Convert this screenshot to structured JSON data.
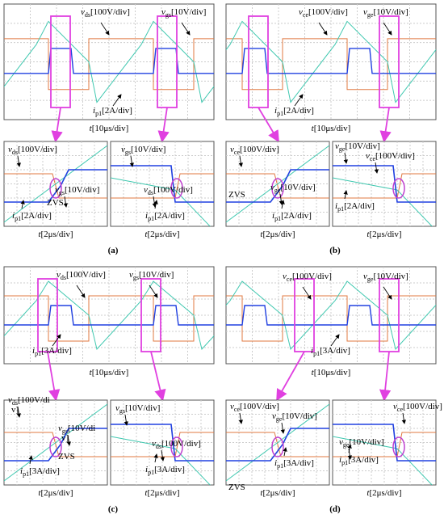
{
  "panels": [
    {
      "letter": "(a)",
      "main": {
        "labels": [
          {
            "v": "v",
            "sub": "ds",
            "text": "[100V/div]"
          },
          {
            "v": "v",
            "sub": "gs",
            "text": "[10V/div]"
          },
          {
            "v": "i",
            "sub": "p1",
            "text": "[2A/div]"
          }
        ],
        "time": {
          "v": "t",
          "text": "[10μs/div]"
        }
      },
      "zooms": [
        {
          "labels": [
            {
              "v": "v",
              "sub": "ds",
              "text": "[100V/div]"
            },
            {
              "v": "v",
              "sub": "gs",
              "text": "[10V/div]"
            },
            {
              "v": "i",
              "sub": "p1",
              "text": "[2A/div]"
            }
          ],
          "zvs": "ZVS",
          "time": {
            "v": "t",
            "text": "[2μs/div]"
          }
        },
        {
          "labels": [
            {
              "v": "v",
              "sub": "gs",
              "text": "[10V/div]"
            },
            {
              "v": "v",
              "sub": "ds",
              "text": "[100V/div]"
            },
            {
              "v": "i",
              "sub": "p1",
              "text": "[2A/div]"
            }
          ],
          "time": {
            "v": "t",
            "text": "[2μs/div]"
          }
        }
      ]
    },
    {
      "letter": "(b)",
      "main": {
        "labels": [
          {
            "v": "v",
            "sub": "ce",
            "text": "[100V/div]"
          },
          {
            "v": "v",
            "sub": "ge",
            "text": "[10V/div]"
          },
          {
            "v": "i",
            "sub": "p1",
            "text": "[2A/div]"
          }
        ],
        "time": {
          "v": "t",
          "text": "[10μs/div]"
        }
      },
      "zooms": [
        {
          "labels": [
            {
              "v": "v",
              "sub": "ce",
              "text": "[100V/div]"
            },
            {
              "v": "v",
              "sub": "ge",
              "text": "[10V/div]"
            },
            {
              "v": "i",
              "sub": "p1",
              "text": "[2A/div]"
            }
          ],
          "zvs": "ZVS",
          "time": {
            "v": "t",
            "text": "[2μs/div]"
          }
        },
        {
          "labels": [
            {
              "v": "v",
              "sub": "ge",
              "text": "[10V/div]"
            },
            {
              "v": "v",
              "sub": "ce",
              "text": "[100V/div]"
            },
            {
              "v": "i",
              "sub": "p1",
              "text": "[2A/div]"
            }
          ],
          "time": {
            "v": "t",
            "text": "[2μs/div]"
          }
        }
      ]
    },
    {
      "letter": "(c)",
      "main": {
        "labels": [
          {
            "v": "v",
            "sub": "ds",
            "text": "[100V/div]"
          },
          {
            "v": "v",
            "sub": "gs",
            "text": "[10V/div]"
          },
          {
            "v": "i",
            "sub": "p1",
            "text": "[3A/div]"
          }
        ],
        "time": {
          "v": "t",
          "text": "[10μs/div]"
        }
      },
      "zooms": [
        {
          "labels": [
            {
              "v": "v",
              "sub": "ds",
              "text": "[100V/di",
              "text2": "v]"
            },
            {
              "v": "v",
              "sub": "gs",
              "text": "[10V/di",
              "text2": "v]"
            },
            {
              "v": "i",
              "sub": "p1",
              "text": "[3A/div]"
            }
          ],
          "zvs": "ZVS",
          "time": {
            "v": "t",
            "text": "[2μs/div]"
          }
        },
        {
          "labels": [
            {
              "v": "v",
              "sub": "gs",
              "text": "[10V/div]"
            },
            {
              "v": "v",
              "sub": "ds",
              "text": "[100V/div]"
            },
            {
              "v": "i",
              "sub": "p1",
              "text": "[3A/div]"
            }
          ],
          "time": {
            "v": "t",
            "text": "[2μs/div]"
          }
        }
      ]
    },
    {
      "letter": "(d)",
      "main": {
        "labels": [
          {
            "v": "v",
            "sub": "ce",
            "text": "[100V/div]"
          },
          {
            "v": "v",
            "sub": "ge",
            "text": "[10V/div]"
          },
          {
            "v": "i",
            "sub": "p1",
            "text": "[3A/div]"
          }
        ],
        "time": {
          "v": "t",
          "text": "[10μs/div]"
        }
      },
      "zooms": [
        {
          "labels": [
            {
              "v": "v",
              "sub": "ce",
              "text": "[100V/div]"
            },
            {
              "v": "v",
              "sub": "ge",
              "text": "[10V/div]"
            },
            {
              "v": "i",
              "sub": "p1",
              "text": "[3A/div]"
            }
          ],
          "zvs": "ZVS",
          "time": {
            "v": "t",
            "text": "[2μs/div]"
          }
        },
        {
          "labels": [
            {
              "v": "v",
              "sub": "ce",
              "text": "[100V/div]"
            },
            {
              "v": "v",
              "sub": "ge",
              "text": "[10V/div]"
            },
            {
              "v": "i",
              "sub": "p1",
              "text": "[3A/div]"
            }
          ],
          "time": {
            "v": "t",
            "text": "[2μs/div]"
          }
        }
      ]
    }
  ]
}
